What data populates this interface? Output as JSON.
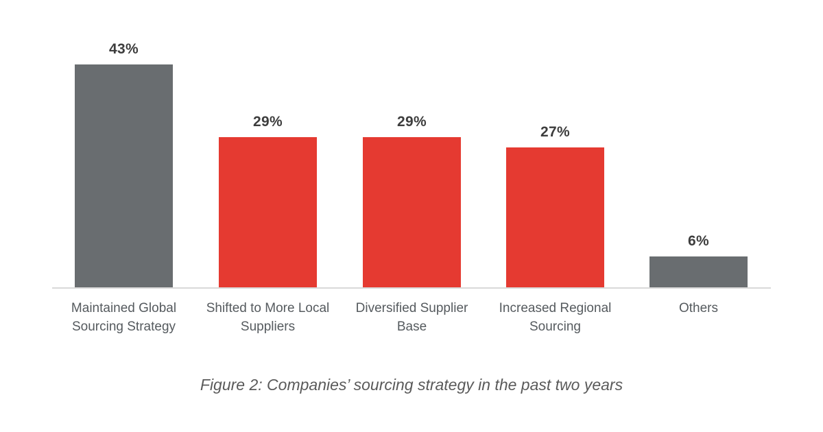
{
  "chart_data": {
    "type": "bar",
    "title": "Figure 2: Companies’ sourcing strategy in the past two years",
    "xlabel": "",
    "ylabel": "",
    "ylim": [
      0,
      43
    ],
    "grid": false,
    "legend": null,
    "categories": [
      "Maintained Global Sourcing Strategy",
      "Shifted to More Local Suppliers",
      "Diversified Supplier Base",
      "Increased Regional Sourcing",
      "Others"
    ],
    "values": [
      43,
      29,
      29,
      27,
      6
    ],
    "value_labels": [
      "43%",
      "29%",
      "29%",
      "27%",
      "6%"
    ],
    "bar_colors": [
      "#696d70",
      "#e53a31",
      "#e53a31",
      "#e53a31",
      "#696d70"
    ]
  },
  "bars": [
    {
      "value": 43,
      "label": "43%",
      "line1": "Maintained Global",
      "line2": "Sourcing Strategy",
      "color": "#696d70"
    },
    {
      "value": 29,
      "label": "29%",
      "line1": "Shifted to More Local",
      "line2": "Suppliers",
      "color": "#e53a31"
    },
    {
      "value": 29,
      "label": "29%",
      "line1": "Diversified Supplier",
      "line2": "Base",
      "color": "#e53a31"
    },
    {
      "value": 27,
      "label": "27%",
      "line1": "Increased Regional",
      "line2": "Sourcing",
      "color": "#e53a31"
    },
    {
      "value": 6,
      "label": "6%",
      "line1": "Others",
      "line2": "",
      "color": "#696d70"
    }
  ],
  "caption": "Figure 2: Companies’ sourcing strategy in the past two years"
}
